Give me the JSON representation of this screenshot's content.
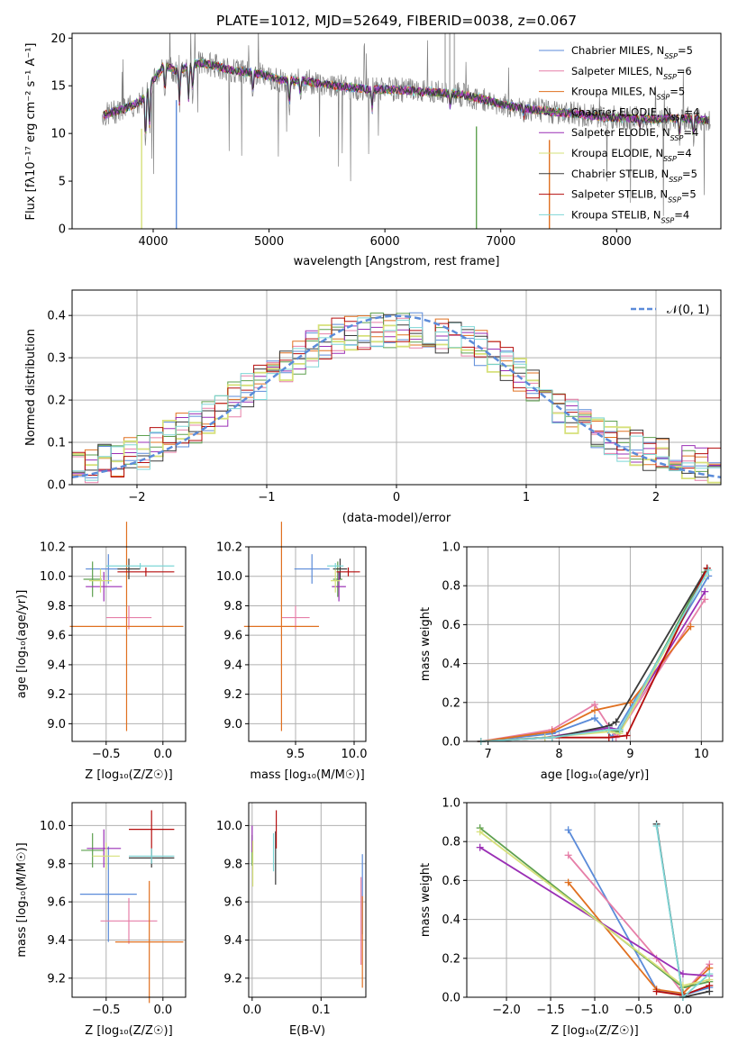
{
  "colors": {
    "chabrier_miles": "#5b8bd9",
    "salpeter_miles": "#e67fa8",
    "kroupa_miles": "#e07020",
    "chabrier_elodie": "#5ea04f",
    "salpeter_elodie": "#9a2fb5",
    "kroupa_elodie": "#d6e07a",
    "chabrier_stelib": "#3a3a3a",
    "salpeter_stelib": "#b50d0d",
    "kroupa_stelib": "#7ed6d6",
    "data": "#808080",
    "normal": "#5b8bd9",
    "grid": "#b0b0b0"
  },
  "spectrum": {
    "title": "PLATE=1012, MJD=52649, FIBERID=0038, z=0.067",
    "xlabel": "wavelength [Angstrom, rest frame]",
    "ylabel": "Flux [fλ10⁻¹⁷ erg cm⁻² s⁻¹ A⁻¹]",
    "legend": [
      {
        "name": "Chabrier MILES",
        "n": "5",
        "color": "#5b8bd9"
      },
      {
        "name": "Salpeter MILES",
        "n": "6",
        "color": "#e67fa8"
      },
      {
        "name": "Kroupa MILES",
        "n": "5",
        "color": "#e07020"
      },
      {
        "name": "Chabrier ELODIE",
        "n": "4",
        "color": "#5ea04f"
      },
      {
        "name": "Salpeter ELODIE",
        "n": "4",
        "color": "#9a2fb5"
      },
      {
        "name": "Kroupa ELODIE",
        "n": "4",
        "color": "#d6e07a"
      },
      {
        "name": "Chabrier STELIB",
        "n": "5",
        "color": "#3a3a3a"
      },
      {
        "name": "Salpeter STELIB",
        "n": "5",
        "color": "#b50d0d"
      },
      {
        "name": "Kroupa STELIB",
        "n": "4",
        "color": "#7ed6d6"
      }
    ]
  },
  "histogram": {
    "xlabel": "(data-model)/error",
    "ylabel": "Normed distribution",
    "legend": "𝒩(0, 1)"
  },
  "age_z": {
    "xlabel": "Z [log₁₀(Z/Z☉)]",
    "ylabel": "age  [log₁₀(age/yr)]"
  },
  "age_mass": {
    "xlabel": "mass [log₁₀(M/M☉)]"
  },
  "mw_age": {
    "xlabel": "age  [log₁₀(age/yr)]",
    "ylabel": "mass weight"
  },
  "mass_z": {
    "xlabel": "Z [log₁₀(Z/Z☉)]",
    "ylabel": "mass [log₁₀(M/M☉)]"
  },
  "mass_ebv": {
    "xlabel": "E(B-V)"
  },
  "mw_z": {
    "xlabel": "Z [log₁₀(Z/Z☉)]",
    "ylabel": "mass weight"
  },
  "chart_data": [
    {
      "type": "line",
      "title": "PLATE=1012, MJD=52649, FIBERID=0038, z=0.067",
      "xlabel": "wavelength [Angstrom, rest frame]",
      "ylabel": "Flux [fλ10⁻¹⁷ erg cm⁻² s⁻¹ A⁻¹]",
      "xlim": [
        3300,
        8900
      ],
      "ylim": [
        0,
        20.5
      ],
      "xticks": [
        4000,
        5000,
        6000,
        7000,
        8000
      ],
      "yticks": [
        0,
        5,
        10,
        15,
        20
      ],
      "grid": false,
      "legend_position": "top-right",
      "continuum": {
        "x": [
          3600,
          3700,
          3800,
          3900,
          4000,
          4100,
          4200,
          4300,
          4400,
          4500,
          4700,
          4900,
          5100,
          5300,
          5500,
          5700,
          5900,
          6100,
          6300,
          6500,
          6700,
          6900,
          7100,
          7300,
          7500,
          7700,
          7900,
          8100,
          8300,
          8500,
          8700,
          8800
        ],
        "y": [
          12.0,
          12.4,
          12.8,
          13.5,
          15.6,
          17.2,
          16.5,
          17.0,
          17.4,
          17.2,
          16.6,
          16.3,
          15.6,
          15.5,
          15.1,
          14.8,
          14.6,
          14.6,
          14.4,
          14.3,
          14.0,
          13.4,
          12.8,
          12.5,
          12.2,
          12.0,
          11.7,
          11.6,
          11.5,
          11.6,
          11.5,
          11.4
        ]
      }
    },
    {
      "type": "bar",
      "subtype": "step-histogram",
      "xlabel": "(data-model)/error",
      "ylabel": "Normed distribution",
      "xlim": [
        -2.5,
        2.5
      ],
      "ylim": [
        0,
        0.46
      ],
      "xticks": [
        -2,
        -1,
        0,
        1,
        2
      ],
      "yticks": [
        0.0,
        0.1,
        0.2,
        0.3,
        0.4
      ],
      "grid": true,
      "legend_position": "top-right",
      "bin_width": 0.1,
      "envelope": {
        "x": [
          -2.5,
          -2.0,
          -1.5,
          -1.0,
          -0.5,
          0.0,
          0.5,
          1.0,
          1.5,
          2.0,
          2.5
        ],
        "y": [
          0.04,
          0.07,
          0.15,
          0.25,
          0.35,
          0.37,
          0.35,
          0.25,
          0.13,
          0.07,
          0.04
        ]
      },
      "normal_curve": {
        "mean": 0,
        "sigma": 1
      }
    },
    {
      "type": "scatter",
      "subtype": "errorbar",
      "xlabel": "Z [log₁₀(Z/Z☉)]",
      "ylabel": "age  [log₁₀(age/yr)]",
      "xlim": [
        -0.8,
        0.2
      ],
      "ylim": [
        8.88,
        10.2
      ],
      "xticks": [
        -0.5,
        0.0
      ],
      "yticks": [
        9.0,
        9.2,
        9.4,
        9.6,
        9.8,
        10.0,
        10.2
      ],
      "grid": true,
      "points": [
        {
          "model": "Chabrier MILES",
          "x": -0.48,
          "xerr": 0.2,
          "y": 10.05,
          "yerr": 0.1
        },
        {
          "model": "Salpeter MILES",
          "x": -0.3,
          "xerr": 0.2,
          "y": 9.72,
          "yerr": 0.08
        },
        {
          "model": "Kroupa MILES",
          "x": -0.32,
          "xerr": 0.5,
          "y": 9.66,
          "yerr": 0.71
        },
        {
          "model": "Chabrier ELODIE",
          "x": -0.62,
          "xerr": 0.08,
          "y": 9.98,
          "yerr": 0.12
        },
        {
          "model": "Salpeter ELODIE",
          "x": -0.52,
          "xerr": 0.16,
          "y": 9.93,
          "yerr": 0.1
        },
        {
          "model": "Kroupa ELODIE",
          "x": -0.55,
          "xerr": 0.1,
          "y": 9.97,
          "yerr": 0.08
        },
        {
          "model": "Chabrier STELIB",
          "x": -0.3,
          "xerr": 0.1,
          "y": 10.05,
          "yerr": 0.07
        },
        {
          "model": "Salpeter STELIB",
          "x": -0.15,
          "xerr": 0.25,
          "y": 10.03,
          "yerr": 0.03
        },
        {
          "model": "Kroupa STELIB",
          "x": -0.2,
          "xerr": 0.3,
          "y": 10.07,
          "yerr": 0.02
        }
      ]
    },
    {
      "type": "scatter",
      "subtype": "errorbar",
      "xlabel": "mass [log₁₀(M/M☉)]",
      "xlim": [
        9.1,
        10.1
      ],
      "ylim": [
        8.88,
        10.2
      ],
      "xticks": [
        9.5,
        10.0
      ],
      "yticks": [
        9.0,
        9.2,
        9.4,
        9.6,
        9.8,
        10.0,
        10.2
      ],
      "grid": true,
      "points": [
        {
          "model": "Chabrier MILES",
          "x": 9.64,
          "xerr": 0.15,
          "y": 10.05,
          "yerr": 0.1
        },
        {
          "model": "Salpeter MILES",
          "x": 9.5,
          "xerr": 0.12,
          "y": 9.72,
          "yerr": 0.08
        },
        {
          "model": "Kroupa MILES",
          "x": 9.38,
          "xerr": 0.32,
          "y": 9.66,
          "yerr": 0.71
        },
        {
          "model": "Chabrier ELODIE",
          "x": 9.86,
          "xerr": 0.04,
          "y": 9.98,
          "yerr": 0.12
        },
        {
          "model": "Salpeter ELODIE",
          "x": 9.87,
          "xerr": 0.06,
          "y": 9.93,
          "yerr": 0.1
        },
        {
          "model": "Kroupa ELODIE",
          "x": 9.84,
          "xerr": 0.04,
          "y": 9.97,
          "yerr": 0.08
        },
        {
          "model": "Chabrier STELIB",
          "x": 9.88,
          "xerr": 0.06,
          "y": 10.05,
          "yerr": 0.07
        },
        {
          "model": "Salpeter STELIB",
          "x": 9.95,
          "xerr": 0.1,
          "y": 10.03,
          "yerr": 0.03
        },
        {
          "model": "Kroupa STELIB",
          "x": 9.84,
          "xerr": 0.07,
          "y": 10.07,
          "yerr": 0.02
        }
      ]
    },
    {
      "type": "line",
      "xlabel": "age  [log₁₀(age/yr)]",
      "ylabel": "mass weight",
      "xlim": [
        6.7,
        10.3
      ],
      "ylim": [
        0,
        1.0
      ],
      "xticks": [
        7,
        8,
        9,
        10
      ],
      "yticks": [
        0.0,
        0.2,
        0.4,
        0.6,
        0.8,
        1.0
      ],
      "grid": true,
      "series": [
        {
          "name": "Chabrier MILES",
          "x": [
            6.9,
            7.9,
            8.5,
            8.75,
            10.1
          ],
          "y": [
            0.0,
            0.04,
            0.12,
            0.02,
            0.85
          ]
        },
        {
          "name": "Salpeter MILES",
          "x": [
            6.9,
            7.9,
            8.5,
            8.8,
            10.05
          ],
          "y": [
            0.0,
            0.06,
            0.19,
            0.02,
            0.73
          ]
        },
        {
          "name": "Kroupa MILES",
          "x": [
            6.9,
            7.9,
            8.5,
            9.0,
            9.85
          ],
          "y": [
            0.0,
            0.05,
            0.16,
            0.2,
            0.59
          ]
        },
        {
          "name": "Chabrier ELODIE",
          "x": [
            6.9,
            7.8,
            8.7,
            8.85,
            10.05
          ],
          "y": [
            0.0,
            0.02,
            0.06,
            0.05,
            0.87
          ]
        },
        {
          "name": "Salpeter ELODIE",
          "x": [
            6.9,
            7.8,
            8.7,
            8.85,
            10.05
          ],
          "y": [
            0.0,
            0.02,
            0.07,
            0.06,
            0.77
          ]
        },
        {
          "name": "Kroupa ELODIE",
          "x": [
            6.9,
            7.8,
            8.7,
            8.85,
            10.05
          ],
          "y": [
            0.0,
            0.02,
            0.05,
            0.04,
            0.85
          ]
        },
        {
          "name": "Chabrier STELIB",
          "x": [
            6.9,
            7.9,
            8.7,
            8.8,
            10.08
          ],
          "y": [
            0.0,
            0.02,
            0.08,
            0.1,
            0.89
          ]
        },
        {
          "name": "Salpeter STELIB",
          "x": [
            6.9,
            7.9,
            8.7,
            8.95,
            10.08
          ],
          "y": [
            0.0,
            0.02,
            0.02,
            0.03,
            0.89
          ]
        },
        {
          "name": "Kroupa STELIB",
          "x": [
            6.9,
            7.9,
            8.7,
            8.85,
            10.1
          ],
          "y": [
            0.0,
            0.02,
            0.06,
            0.06,
            0.88
          ]
        }
      ]
    },
    {
      "type": "scatter",
      "subtype": "errorbar",
      "xlabel": "Z [log₁₀(Z/Z☉)]",
      "ylabel": "mass [log₁₀(M/M☉)]",
      "xlim": [
        -0.8,
        0.2
      ],
      "ylim": [
        9.1,
        10.12
      ],
      "xticks": [
        -0.5,
        0.0
      ],
      "yticks": [
        9.2,
        9.4,
        9.6,
        9.8,
        10.0
      ],
      "grid": true,
      "points": [
        {
          "model": "Chabrier MILES",
          "x": -0.48,
          "xerr": 0.25,
          "y": 9.64,
          "yerr": 0.25
        },
        {
          "model": "Salpeter MILES",
          "x": -0.3,
          "xerr": 0.25,
          "y": 9.5,
          "yerr": 0.12
        },
        {
          "model": "Kroupa MILES",
          "x": -0.12,
          "xerr": 0.3,
          "y": 9.39,
          "yerr": 0.32
        },
        {
          "model": "Chabrier ELODIE",
          "x": -0.62,
          "xerr": 0.1,
          "y": 9.87,
          "yerr": 0.09
        },
        {
          "model": "Salpeter ELODIE",
          "x": -0.52,
          "xerr": 0.15,
          "y": 9.88,
          "yerr": 0.1
        },
        {
          "model": "Kroupa ELODIE",
          "x": -0.5,
          "xerr": 0.12,
          "y": 9.84,
          "yerr": 0.07
        },
        {
          "model": "Chabrier STELIB",
          "x": -0.1,
          "xerr": 0.2,
          "y": 9.83,
          "yerr": 0.05
        },
        {
          "model": "Salpeter STELIB",
          "x": -0.1,
          "xerr": 0.2,
          "y": 9.98,
          "yerr": 0.1
        },
        {
          "model": "Kroupa STELIB",
          "x": -0.1,
          "xerr": 0.2,
          "y": 9.84,
          "yerr": 0.04
        }
      ]
    },
    {
      "type": "scatter",
      "subtype": "errorbar",
      "xlabel": "E(B-V)",
      "xlim": [
        -0.005,
        0.165
      ],
      "ylim": [
        9.1,
        10.12
      ],
      "xticks": [
        0.0,
        0.1
      ],
      "yticks": [
        9.2,
        9.4,
        9.6,
        9.8,
        10.0
      ],
      "grid": true,
      "points": [
        {
          "model": "Chabrier MILES",
          "x": 0.16,
          "y": 9.64,
          "yerr": 0.21
        },
        {
          "model": "Salpeter MILES",
          "x": 0.158,
          "y": 9.5,
          "yerr": 0.23
        },
        {
          "model": "Kroupa MILES",
          "x": 0.16,
          "y": 9.39,
          "yerr": 0.24
        },
        {
          "model": "Chabrier ELODIE",
          "x": 0.0,
          "y": 9.87,
          "yerr": 0.08
        },
        {
          "model": "Salpeter ELODIE",
          "x": 0.0,
          "y": 9.93,
          "yerr": 0.07
        },
        {
          "model": "Kroupa ELODIE",
          "x": 0.001,
          "y": 9.8,
          "yerr": 0.12
        },
        {
          "model": "Chabrier STELIB",
          "x": 0.034,
          "y": 9.83,
          "yerr": 0.14
        },
        {
          "model": "Salpeter STELIB",
          "x": 0.035,
          "y": 9.98,
          "yerr": 0.1
        },
        {
          "model": "Kroupa STELIB",
          "x": 0.031,
          "y": 9.86,
          "yerr": 0.1
        }
      ]
    },
    {
      "type": "line",
      "xlabel": "Z [log₁₀(Z/Z☉)]",
      "ylabel": "mass weight",
      "xlim": [
        -2.45,
        0.45
      ],
      "ylim": [
        0,
        1.0
      ],
      "xticks": [
        -2.0,
        -1.5,
        -1.0,
        -0.5,
        0.0
      ],
      "yticks": [
        0.0,
        0.2,
        0.4,
        0.6,
        0.8,
        1.0
      ],
      "grid": true,
      "series": [
        {
          "name": "Chabrier MILES",
          "x": [
            -1.3,
            -0.3,
            0.0,
            0.3
          ],
          "y": [
            0.86,
            0.04,
            0.01,
            0.05
          ]
        },
        {
          "name": "Salpeter MILES",
          "x": [
            -1.3,
            -0.3,
            0.0,
            0.3
          ],
          "y": [
            0.73,
            0.2,
            0.02,
            0.17
          ]
        },
        {
          "name": "Kroupa MILES",
          "x": [
            -1.3,
            -0.3,
            0.0,
            0.3
          ],
          "y": [
            0.59,
            0.04,
            0.02,
            0.15
          ]
        },
        {
          "name": "Chabrier ELODIE",
          "x": [
            -2.3,
            0.0,
            0.3
          ],
          "y": [
            0.87,
            0.05,
            0.08
          ]
        },
        {
          "name": "Salpeter ELODIE",
          "x": [
            -2.3,
            0.0,
            0.3
          ],
          "y": [
            0.77,
            0.12,
            0.11
          ]
        },
        {
          "name": "Kroupa ELODIE",
          "x": [
            -2.3,
            0.0,
            0.3
          ],
          "y": [
            0.85,
            0.06,
            0.09
          ]
        },
        {
          "name": "Chabrier STELIB",
          "x": [
            -0.3,
            0.0,
            0.3
          ],
          "y": [
            0.89,
            0.0,
            0.03
          ]
        },
        {
          "name": "Salpeter STELIB",
          "x": [
            -0.3,
            0.0,
            0.3
          ],
          "y": [
            0.03,
            0.01,
            0.06
          ]
        },
        {
          "name": "Kroupa STELIB",
          "x": [
            -0.3,
            0.0,
            0.3
          ],
          "y": [
            0.88,
            0.0,
            0.12
          ]
        }
      ]
    }
  ]
}
